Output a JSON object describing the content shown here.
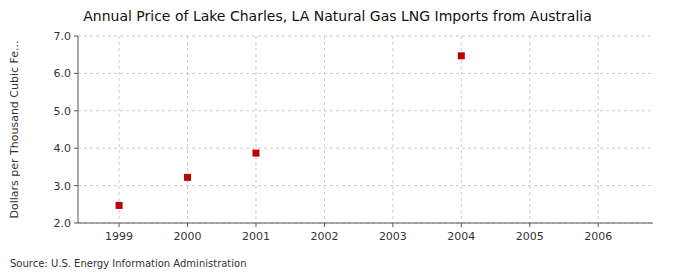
{
  "chart_data": {
    "type": "scatter",
    "title": "Annual Price of Lake Charles, LA Natural Gas LNG Imports from Australia",
    "ylabel": "Dollars per Thousand Cubic Fe...",
    "annotations": [
      "Source: U.S. Energy Information Administration"
    ],
    "x": [
      1999,
      2000,
      2001,
      2004
    ],
    "values": [
      2.47,
      3.22,
      3.87,
      6.47
    ],
    "color": "#bb0000",
    "marker": "square",
    "xlim": [
      1998.4,
      2006.8
    ],
    "ylim": [
      2.0,
      7.0
    ],
    "xticks": [
      1999,
      2000,
      2001,
      2002,
      2003,
      2004,
      2005,
      2006
    ],
    "yticks": [
      {
        "value": 2.0,
        "label": "2.0"
      },
      {
        "value": 3.0,
        "label": "3.0"
      },
      {
        "value": 4.0,
        "label": "4.0"
      },
      {
        "value": 5.0,
        "label": "5.0"
      },
      {
        "value": 6.0,
        "label": "6.0"
      },
      {
        "value": 7.0,
        "label": "7.0"
      }
    ],
    "grid": true
  }
}
